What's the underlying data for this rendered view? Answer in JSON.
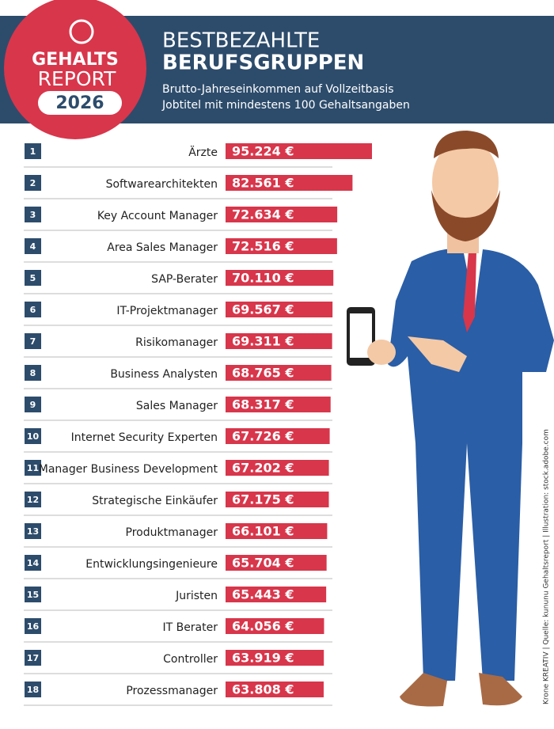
{
  "logo": {
    "line1": "GEHALTS",
    "line2": "REPORT",
    "year": "2026"
  },
  "credit": "Krone KREATIV | Quelle: kununu Gehaltsreport | Illustration: stock.adobe.com",
  "chart_data": {
    "type": "bar",
    "title": [
      "BESTBEZAHLTE",
      "BERUFSGRUPPEN"
    ],
    "subtitle": [
      "Brutto-Jahreseinkommen auf Vollzeitbasis",
      "Jobtitel mit mindestens 100 Gehaltsangaben"
    ],
    "ranks": [
      1,
      2,
      3,
      4,
      5,
      6,
      7,
      8,
      9,
      10,
      11,
      12,
      13,
      14,
      15,
      16,
      17,
      18
    ],
    "categories": [
      "Ärzte",
      "Softwarearchitekten",
      "Key Account Manager",
      "Area Sales Manager",
      "SAP-Berater",
      "IT-Projektmanager",
      "Risikomanager",
      "Business Analysten",
      "Sales Manager",
      "Internet Security Experten",
      "Manager Business Development",
      "Strategische Einkäufer",
      "Produktmanager",
      "Entwicklungsingenieure",
      "Juristen",
      "IT Berater",
      "Controller",
      "Prozessmanager"
    ],
    "values": [
      95224,
      82561,
      72634,
      72516,
      70110,
      69567,
      69311,
      68765,
      68317,
      67726,
      67202,
      67175,
      66101,
      65704,
      65443,
      64056,
      63919,
      63808
    ],
    "value_labels": [
      "95.224 €",
      "82.561 €",
      "72.634 €",
      "72.516 €",
      "70.110 €",
      "69.567 €",
      "69.311 €",
      "68.765 €",
      "68.317 €",
      "67.726 €",
      "67.202 €",
      "67.175 €",
      "66.101 €",
      "65.704 €",
      "65.443 €",
      "64.056 €",
      "63.919 €",
      "63.808 €"
    ],
    "color": "#d8364b"
  }
}
